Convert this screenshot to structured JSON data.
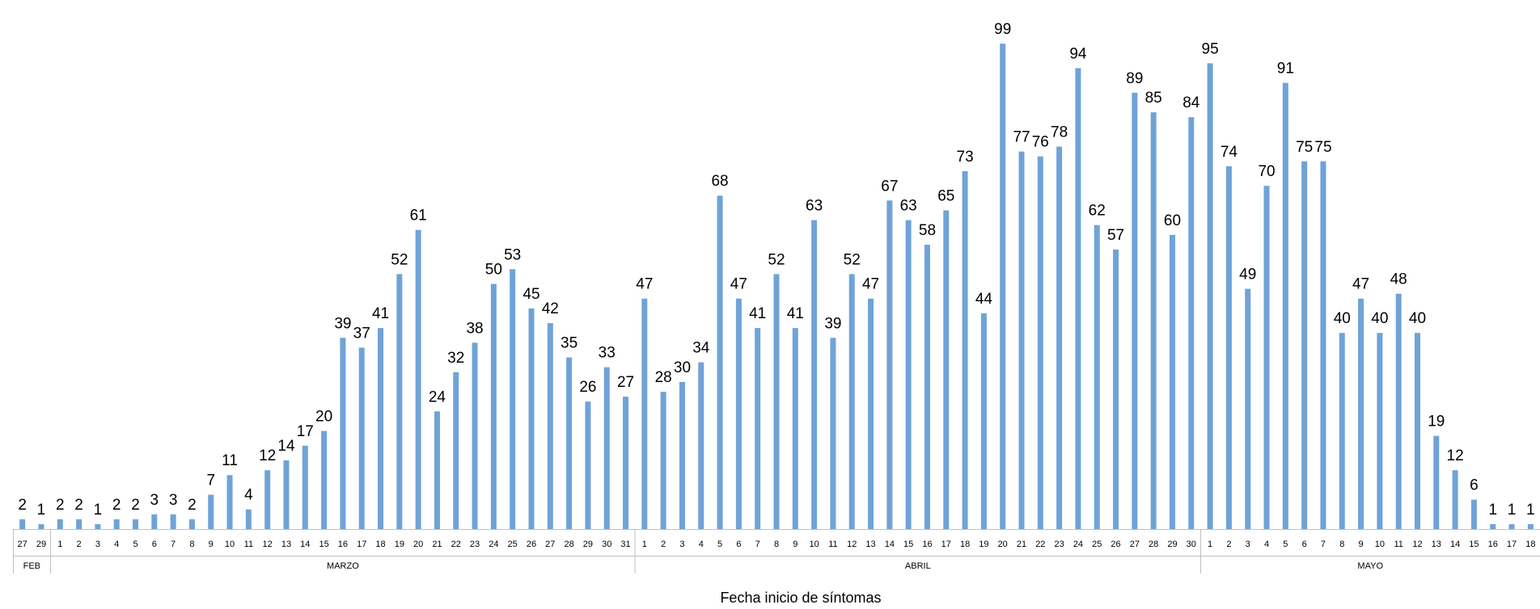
{
  "chart_data": {
    "type": "bar",
    "title": "",
    "xlabel": "Fecha inicio de síntomas",
    "ylabel": "",
    "ylim": [
      0,
      100
    ],
    "grid": false,
    "legend": "none",
    "bar_color": "#6fa3d8",
    "categories": [
      "27",
      "29",
      "1",
      "2",
      "3",
      "4",
      "5",
      "6",
      "7",
      "8",
      "9",
      "10",
      "11",
      "12",
      "13",
      "14",
      "15",
      "16",
      "17",
      "18",
      "19",
      "20",
      "21",
      "22",
      "23",
      "24",
      "25",
      "26",
      "27",
      "28",
      "29",
      "30",
      "31",
      "1",
      "2",
      "3",
      "4",
      "5",
      "6",
      "7",
      "8",
      "9",
      "10",
      "11",
      "12",
      "13",
      "14",
      "15",
      "16",
      "17",
      "18",
      "19",
      "20",
      "21",
      "22",
      "23",
      "24",
      "25",
      "26",
      "27",
      "28",
      "29",
      "30",
      "1",
      "2",
      "3",
      "4",
      "5",
      "6",
      "7",
      "8",
      "9",
      "10",
      "11",
      "12",
      "13",
      "14",
      "15",
      "16",
      "17",
      "18"
    ],
    "values": [
      2,
      1,
      2,
      2,
      1,
      2,
      2,
      3,
      3,
      2,
      7,
      11,
      4,
      12,
      14,
      17,
      20,
      39,
      37,
      41,
      52,
      61,
      24,
      32,
      38,
      50,
      53,
      45,
      42,
      35,
      26,
      33,
      27,
      47,
      28,
      30,
      34,
      68,
      47,
      41,
      52,
      41,
      63,
      39,
      52,
      47,
      67,
      63,
      58,
      65,
      73,
      44,
      99,
      77,
      76,
      78,
      94,
      62,
      57,
      89,
      85,
      60,
      84,
      95,
      74,
      49,
      70,
      91,
      75,
      75,
      40,
      47,
      40,
      48,
      40,
      19,
      12,
      6,
      1,
      1,
      1
    ],
    "value_labels": [
      "2",
      "1",
      "2",
      "2",
      "1",
      "2",
      "2",
      "3",
      "3",
      "2",
      "7",
      "11",
      "4",
      "12",
      "14",
      "17",
      "20",
      "39",
      "37",
      "41",
      "52",
      "61",
      "24",
      "32",
      "38",
      "50",
      "53",
      "45",
      "42",
      "35",
      "26",
      "33",
      "27",
      "47",
      "28",
      "30",
      "34",
      "68",
      "47",
      "41",
      "52",
      "41",
      "63",
      "39",
      "52",
      "47",
      "67",
      "63",
      "58",
      "65",
      "73",
      "44",
      "99",
      "77",
      "76",
      "78",
      "94",
      "62",
      "57",
      "89",
      "85",
      "60",
      "84",
      "95",
      "74",
      "49",
      "70",
      "91",
      "75",
      "75",
      "40",
      "47",
      "40",
      "48",
      "40",
      "19",
      "12",
      "6",
      "1",
      "1",
      "1"
    ],
    "groups": [
      {
        "label": "FEB",
        "start": 0,
        "count": 2
      },
      {
        "label": "MARZO",
        "start": 2,
        "count": 31
      },
      {
        "label": "ABRIL",
        "start": 33,
        "count": 30
      },
      {
        "label": "MAYO",
        "start": 63,
        "count": 18
      }
    ]
  }
}
